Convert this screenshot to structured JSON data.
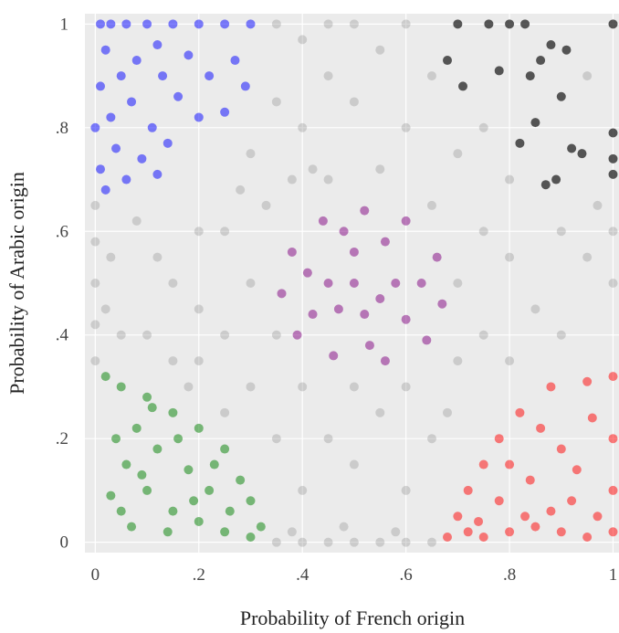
{
  "chart_data": {
    "type": "scatter",
    "xlabel": "Probability of French origin",
    "ylabel": "Probability of Arabic origin",
    "xlim": [
      -0.02,
      1.015
    ],
    "ylim": [
      -0.02,
      1.02
    ],
    "xticks": [
      0,
      {
        "value": 0.2,
        "label": ".2"
      },
      {
        "value": 0.4,
        "label": ".4"
      },
      {
        "value": 0.6,
        "label": ".6"
      },
      {
        "value": 0.8,
        "label": ".8"
      },
      1
    ],
    "yticks": [
      0,
      {
        "value": 0.2,
        "label": ".2"
      },
      {
        "value": 0.4,
        "label": ".4"
      },
      {
        "value": 0.6,
        "label": ".6"
      },
      {
        "value": 0.8,
        "label": ".8"
      },
      1
    ],
    "grid": true,
    "series": [
      {
        "color": "#808080",
        "opacity": 0.3,
        "x": [
          0.35,
          0.4,
          0.45,
          0.5,
          0.55,
          0.6,
          0.65,
          0.38,
          0.48,
          0.58,
          0,
          0,
          0,
          0,
          0,
          0.02,
          0.03,
          0.1,
          0.15,
          0.2,
          0.25,
          0.3,
          0.35,
          0.4,
          0.45,
          0.5,
          0.55,
          0.6,
          0.65,
          0.4,
          0.3,
          0.25,
          0.2,
          0.12,
          0.08,
          0.33,
          0.38,
          0.3,
          0.35,
          0.4,
          0.45,
          0.42,
          0.28,
          0.5,
          0.6,
          0.68,
          0.7,
          0.65,
          0.7,
          0.75,
          0.8,
          0.35,
          0.45,
          0.55,
          0.6,
          0.5,
          0.55,
          0.4,
          0.35,
          0.45,
          0.5,
          0.6,
          0.65,
          0.7,
          0.75,
          0.8,
          0.85,
          0.9,
          0.95,
          1,
          1,
          0.75,
          0.8,
          0.95,
          0.97,
          0.9,
          0.2,
          0.15,
          0.05,
          0.25,
          0.18
        ],
        "values": [
          0,
          0,
          0,
          0,
          0,
          0,
          0,
          0.02,
          0.03,
          0.02,
          0.35,
          0.42,
          0.5,
          0.58,
          0.65,
          0.45,
          0.55,
          0.4,
          0.5,
          0.6,
          0.4,
          0.3,
          0.2,
          0.1,
          0.2,
          0.15,
          0.25,
          0.1,
          0.2,
          0.3,
          0.5,
          0.6,
          0.45,
          0.55,
          0.62,
          0.65,
          0.7,
          0.75,
          0.85,
          0.8,
          0.9,
          0.72,
          0.68,
          0.3,
          0.3,
          0.25,
          0.35,
          0.65,
          0.5,
          0.4,
          0.35,
          0.4,
          0.7,
          0.72,
          0.8,
          0.85,
          0.95,
          0.97,
          1,
          1,
          1,
          1,
          0.9,
          0.75,
          0.6,
          0.55,
          0.45,
          0.4,
          0.55,
          0.5,
          0.6,
          0.8,
          0.7,
          0.9,
          0.65,
          0.6,
          0.35,
          0.35,
          0.4,
          0.25,
          0.3
        ]
      },
      {
        "color": "#0000ff",
        "opacity": 0.5,
        "x": [
          0.01,
          0.03,
          0.06,
          0.1,
          0.15,
          0.2,
          0.25,
          0.3,
          0.02,
          0.05,
          0.08,
          0.12,
          0.18,
          0.22,
          0.27,
          0.03,
          0.07,
          0.11,
          0.16,
          0.2,
          0.25,
          0.01,
          0.04,
          0.09,
          0.14,
          0.02,
          0.06,
          0.12,
          0.29,
          0.01,
          0,
          0.13
        ],
        "values": [
          1,
          1,
          1,
          1,
          1,
          1,
          1,
          1,
          0.95,
          0.9,
          0.93,
          0.96,
          0.94,
          0.9,
          0.93,
          0.82,
          0.85,
          0.8,
          0.86,
          0.82,
          0.83,
          0.72,
          0.76,
          0.74,
          0.77,
          0.68,
          0.7,
          0.71,
          0.88,
          0.88,
          0.8,
          0.9
        ]
      },
      {
        "color": "#800080",
        "opacity": 0.5,
        "x": [
          0.52,
          0.44,
          0.6,
          0.38,
          0.66,
          0.36,
          0.67,
          0.39,
          0.64,
          0.46,
          0.56,
          0.5,
          0.45,
          0.58,
          0.52,
          0.42,
          0.6,
          0.48,
          0.56,
          0.63,
          0.41,
          0.53,
          0.47,
          0.55,
          0.5
        ],
        "values": [
          0.64,
          0.62,
          0.62,
          0.56,
          0.55,
          0.48,
          0.46,
          0.4,
          0.39,
          0.36,
          0.35,
          0.56,
          0.5,
          0.5,
          0.44,
          0.44,
          0.43,
          0.6,
          0.58,
          0.5,
          0.52,
          0.38,
          0.45,
          0.47,
          0.5
        ]
      },
      {
        "color": "#008000",
        "opacity": 0.5,
        "x": [
          0.02,
          0.05,
          0.1,
          0.15,
          0.2,
          0.25,
          0.28,
          0.3,
          0.32,
          0.3,
          0.25,
          0.2,
          0.15,
          0.1,
          0.06,
          0.04,
          0.08,
          0.12,
          0.18,
          0.22,
          0.26,
          0.14,
          0.07,
          0.03,
          0.16,
          0.23,
          0.11,
          0.05,
          0.19,
          0.09
        ],
        "values": [
          0.32,
          0.3,
          0.28,
          0.25,
          0.22,
          0.18,
          0.12,
          0.08,
          0.03,
          0.01,
          0.02,
          0.04,
          0.06,
          0.1,
          0.15,
          0.2,
          0.22,
          0.18,
          0.14,
          0.1,
          0.06,
          0.02,
          0.03,
          0.09,
          0.2,
          0.15,
          0.26,
          0.06,
          0.08,
          0.13
        ]
      },
      {
        "color": "#ff0000",
        "opacity": 0.5,
        "x": [
          0.68,
          0.7,
          0.72,
          0.75,
          0.78,
          0.82,
          0.88,
          0.95,
          1,
          1,
          1,
          1,
          0.95,
          0.9,
          0.85,
          0.8,
          0.75,
          0.72,
          0.78,
          0.84,
          0.9,
          0.96,
          0.92,
          0.86,
          0.8,
          0.97,
          0.88,
          0.74,
          0.93,
          0.83
        ],
        "values": [
          0.01,
          0.05,
          0.1,
          0.15,
          0.2,
          0.25,
          0.3,
          0.31,
          0.32,
          0.2,
          0.1,
          0.02,
          0.01,
          0.02,
          0.03,
          0.02,
          0.01,
          0.02,
          0.08,
          0.12,
          0.18,
          0.24,
          0.08,
          0.22,
          0.15,
          0.05,
          0.06,
          0.04,
          0.14,
          0.05
        ]
      },
      {
        "color": "#222222",
        "opacity": 0.75,
        "x": [
          0.7,
          0.76,
          0.8,
          0.83,
          1,
          0.68,
          0.71,
          0.78,
          0.84,
          0.86,
          0.88,
          0.91,
          0.85,
          0.82,
          0.9,
          0.92,
          0.94,
          1,
          1,
          1,
          0.87,
          0.89
        ],
        "values": [
          1,
          1,
          1,
          1,
          1,
          0.93,
          0.88,
          0.91,
          0.9,
          0.93,
          0.96,
          0.95,
          0.81,
          0.77,
          0.86,
          0.76,
          0.75,
          0.79,
          0.74,
          0.71,
          0.69,
          0.7
        ]
      }
    ]
  }
}
